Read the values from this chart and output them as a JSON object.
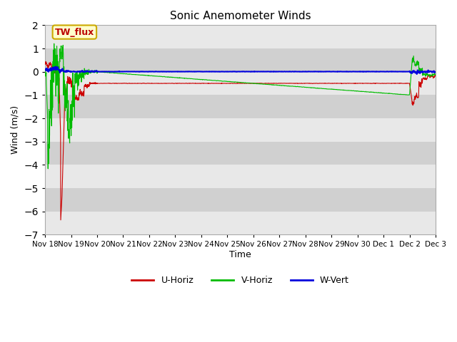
{
  "title": "Sonic Anemometer Winds",
  "xlabel": "Time",
  "ylabel": "Wind (m/s)",
  "ylim": [
    -7.0,
    2.0
  ],
  "yticks": [
    2.0,
    1.0,
    0.0,
    -1.0,
    -2.0,
    -3.0,
    -4.0,
    -5.0,
    -6.0,
    -7.0
  ],
  "bg_color": "#ffffff",
  "fig_color": "#ffffff",
  "band_color_light": "#e8e8e8",
  "band_color_dark": "#d0d0d0",
  "annotation_text": "TW_flux",
  "annotation_bg": "#ffffcc",
  "annotation_border": "#ccaa00",
  "line_colors": {
    "u": "#cc0000",
    "v": "#00bb00",
    "w": "#0000dd"
  },
  "legend": [
    "U-Horiz",
    "V-Horiz",
    "W-Vert"
  ],
  "xtick_labels": [
    "Nov 18",
    "Nov 19",
    "Nov 20",
    "Nov 21",
    "Nov 22",
    "Nov 23",
    "Nov 24",
    "Nov 25",
    "Nov 26",
    "Nov 27",
    "Nov 28",
    "Nov 29",
    "Nov 30",
    "Dec 1",
    "Dec 2",
    "Dec 3"
  ]
}
